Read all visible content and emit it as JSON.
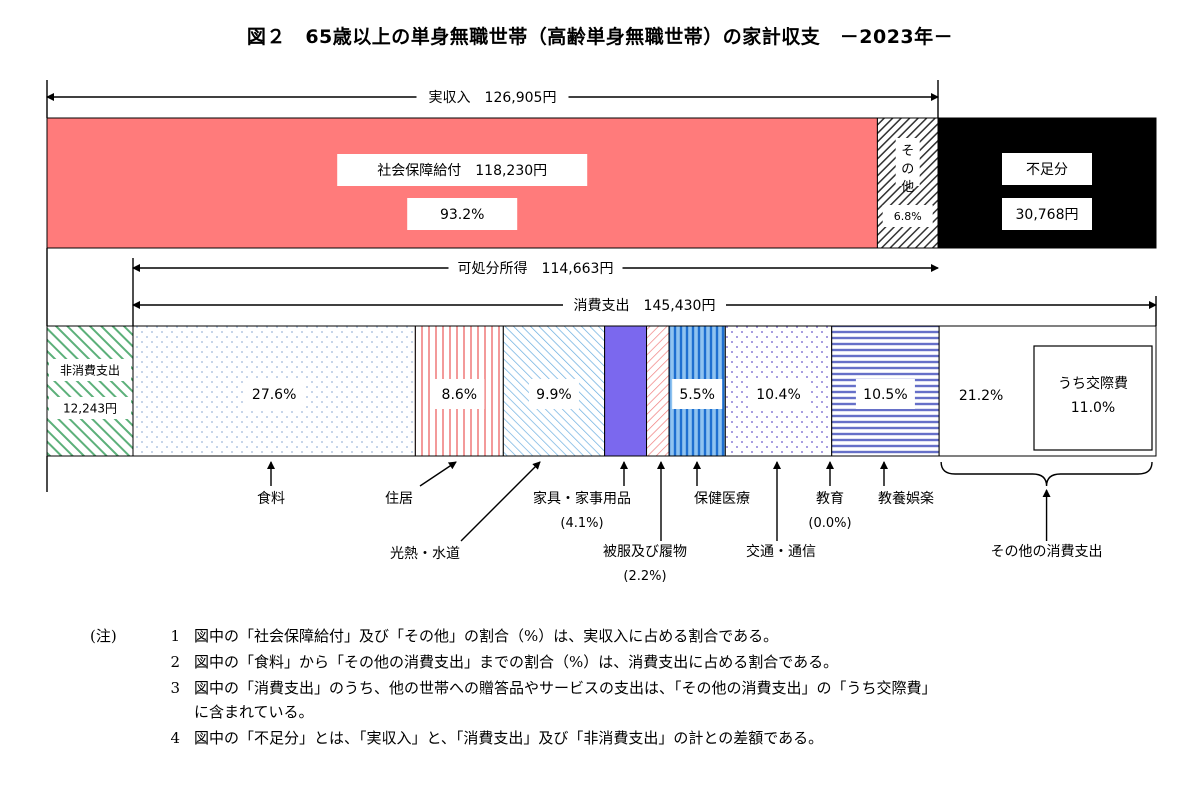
{
  "title": "図２　65歳以上の単身無職世帯（高齢単身無職世帯）の家計収支　－2023年－",
  "chart_data": {
    "type": "bar",
    "orientation": "horizontal-stacked",
    "income": {
      "label": "実収入",
      "value_text": "126,905円",
      "value": 126905,
      "segments": [
        {
          "name": "社会保障給付",
          "value_text": "118,230円",
          "value": 118230,
          "pct_text": "93.2%",
          "pct": 93.2,
          "color": "#ff7b7b"
        },
        {
          "name": "その他",
          "pct_text": "6.8%",
          "pct": 6.8,
          "pattern": "diagonal-hatch"
        }
      ],
      "deficit": {
        "name": "不足分",
        "value_text": "30,768円",
        "value": 30768,
        "color": "#000000"
      },
      "disposable": {
        "label": "可処分所得",
        "value_text": "114,663円",
        "value": 114663
      }
    },
    "expenditure": {
      "consumption_label": "消費支出",
      "consumption_value_text": "145,430円",
      "consumption_value": 145430,
      "non_consumption": {
        "name": "非消費支出",
        "value_text": "12,243円",
        "value": 12243,
        "color": "#5cb07a"
      },
      "segments": [
        {
          "name": "食料",
          "pct_text": "27.6%",
          "pct": 27.6,
          "color": "#9fb7d9",
          "pattern": "dots"
        },
        {
          "name": "住居",
          "pct_text": "8.6%",
          "pct": 8.6,
          "color": "#f08080",
          "pattern": "vlines"
        },
        {
          "name": "光熱・水道",
          "pct_text": "9.9%",
          "pct": 9.9,
          "color": "#6aaee0",
          "pattern": "diag"
        },
        {
          "name": "家具・家事用品",
          "name_sub": "(4.1%)",
          "pct": 4.1,
          "color": "#7b68ee",
          "pattern": "solid"
        },
        {
          "name": "被服及び履物",
          "name_sub": "(2.2%)",
          "pct": 2.2,
          "color": "#f08080",
          "pattern": "diag"
        },
        {
          "name": "保健医療",
          "pct_text": "5.5%",
          "pct": 5.5,
          "color": "#1e6fd0",
          "pattern": "vlines"
        },
        {
          "name": "交通・通信",
          "pct_text": "10.4%",
          "pct": 10.4,
          "color": "#8c7fd8",
          "pattern": "dots"
        },
        {
          "name": "教育",
          "name_sub": "(0.0%)",
          "pct": 0.0,
          "color": "#6670c8",
          "pattern": "none"
        },
        {
          "name": "教養娯楽",
          "pct_text": "10.5%",
          "pct": 10.5,
          "color": "#6670c8",
          "pattern": "hlines"
        },
        {
          "name": "その他の消費支出",
          "pct_text": "21.2%",
          "pct": 21.2,
          "color": "#ffffff",
          "pattern": "none"
        }
      ],
      "sub_item": {
        "name": "うち交際費",
        "pct_text": "11.0%",
        "pct": 11.0
      }
    }
  },
  "notes": {
    "head": "(注)",
    "items": [
      {
        "num": "1",
        "text": "図中の「社会保障給付」及び「その他」の割合（%）は、実収入に占める割合である。"
      },
      {
        "num": "2",
        "text": "図中の「食料」から「その他の消費支出」までの割合（%）は、消費支出に占める割合である。"
      },
      {
        "num": "3",
        "text": "図中の「消費支出」のうち、他の世帯への贈答品やサービスの支出は、「その他の消費支出」の「うち交際費」"
      },
      {
        "num": "",
        "text": "に含まれている。"
      },
      {
        "num": "4",
        "text": "図中の「不足分」とは、「実収入」と、「消費支出」及び「非消費支出」の計との差額である。"
      }
    ]
  }
}
